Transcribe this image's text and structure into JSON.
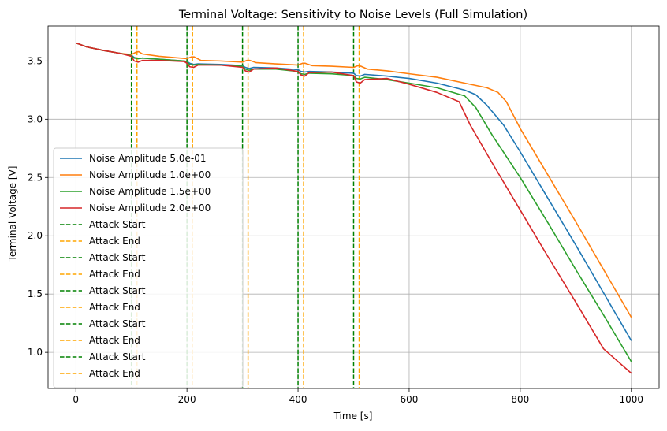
{
  "chart_data": {
    "type": "line",
    "title": "Terminal Voltage: Sensitivity to Noise Levels (Full Simulation)",
    "xlabel": "Time [s]",
    "ylabel": "Terminal Voltage [V]",
    "xlim": [
      -50,
      1050
    ],
    "ylim": [
      0.69,
      3.8
    ],
    "x_ticks": [
      0,
      200,
      400,
      600,
      800,
      1000
    ],
    "y_ticks": [
      1.0,
      1.5,
      2.0,
      2.5,
      3.0,
      3.5
    ],
    "x_tick_labels": [
      "0",
      "200",
      "400",
      "600",
      "800",
      "1000"
    ],
    "y_tick_labels": [
      "1.0",
      "1.5",
      "2.0",
      "2.5",
      "3.0",
      "3.5"
    ],
    "grid": true,
    "legend_position": "lower-left",
    "series": [
      {
        "name": "Noise Amplitude 5.0e-01",
        "color": "#1f77b4",
        "points": [
          [
            0,
            3.655
          ],
          [
            20,
            3.62
          ],
          [
            50,
            3.59
          ],
          [
            80,
            3.565
          ],
          [
            100,
            3.55
          ],
          [
            105,
            3.53
          ],
          [
            112,
            3.52
          ],
          [
            120,
            3.525
          ],
          [
            150,
            3.515
          ],
          [
            195,
            3.5
          ],
          [
            200,
            3.495
          ],
          [
            205,
            3.48
          ],
          [
            212,
            3.47
          ],
          [
            220,
            3.475
          ],
          [
            260,
            3.47
          ],
          [
            300,
            3.46
          ],
          [
            305,
            3.445
          ],
          [
            312,
            3.435
          ],
          [
            320,
            3.445
          ],
          [
            360,
            3.44
          ],
          [
            400,
            3.425
          ],
          [
            405,
            3.41
          ],
          [
            412,
            3.405
          ],
          [
            420,
            3.41
          ],
          [
            460,
            3.405
          ],
          [
            500,
            3.395
          ],
          [
            505,
            3.375
          ],
          [
            512,
            3.37
          ],
          [
            520,
            3.385
          ],
          [
            560,
            3.37
          ],
          [
            600,
            3.35
          ],
          [
            650,
            3.31
          ],
          [
            700,
            3.25
          ],
          [
            720,
            3.21
          ],
          [
            740,
            3.12
          ],
          [
            770,
            2.95
          ],
          [
            800,
            2.72
          ],
          [
            850,
            2.32
          ],
          [
            900,
            1.92
          ],
          [
            950,
            1.51
          ],
          [
            1000,
            1.1
          ]
        ]
      },
      {
        "name": "Noise Amplitude 1.0e+00",
        "color": "#ff7f0e",
        "points": [
          [
            0,
            3.655
          ],
          [
            20,
            3.62
          ],
          [
            50,
            3.59
          ],
          [
            80,
            3.565
          ],
          [
            100,
            3.555
          ],
          [
            108,
            3.575
          ],
          [
            113,
            3.58
          ],
          [
            120,
            3.56
          ],
          [
            150,
            3.54
          ],
          [
            200,
            3.52
          ],
          [
            208,
            3.535
          ],
          [
            213,
            3.535
          ],
          [
            225,
            3.505
          ],
          [
            260,
            3.5
          ],
          [
            300,
            3.49
          ],
          [
            308,
            3.505
          ],
          [
            313,
            3.505
          ],
          [
            325,
            3.485
          ],
          [
            360,
            3.475
          ],
          [
            400,
            3.465
          ],
          [
            408,
            3.48
          ],
          [
            413,
            3.48
          ],
          [
            425,
            3.46
          ],
          [
            460,
            3.455
          ],
          [
            500,
            3.445
          ],
          [
            508,
            3.46
          ],
          [
            513,
            3.455
          ],
          [
            525,
            3.43
          ],
          [
            560,
            3.415
          ],
          [
            600,
            3.39
          ],
          [
            650,
            3.36
          ],
          [
            700,
            3.31
          ],
          [
            740,
            3.27
          ],
          [
            760,
            3.23
          ],
          [
            775,
            3.15
          ],
          [
            800,
            2.92
          ],
          [
            850,
            2.52
          ],
          [
            900,
            2.12
          ],
          [
            950,
            1.71
          ],
          [
            1000,
            1.3
          ]
        ]
      },
      {
        "name": "Noise Amplitude 1.5e+00",
        "color": "#2ca02c",
        "points": [
          [
            0,
            3.655
          ],
          [
            20,
            3.62
          ],
          [
            50,
            3.59
          ],
          [
            80,
            3.565
          ],
          [
            100,
            3.545
          ],
          [
            105,
            3.525
          ],
          [
            112,
            3.52
          ],
          [
            120,
            3.525
          ],
          [
            150,
            3.515
          ],
          [
            195,
            3.5
          ],
          [
            200,
            3.49
          ],
          [
            205,
            3.47
          ],
          [
            212,
            3.465
          ],
          [
            220,
            3.47
          ],
          [
            260,
            3.465
          ],
          [
            300,
            3.455
          ],
          [
            305,
            3.43
          ],
          [
            312,
            3.42
          ],
          [
            320,
            3.43
          ],
          [
            360,
            3.43
          ],
          [
            400,
            3.41
          ],
          [
            405,
            3.39
          ],
          [
            412,
            3.385
          ],
          [
            420,
            3.395
          ],
          [
            460,
            3.39
          ],
          [
            500,
            3.375
          ],
          [
            505,
            3.35
          ],
          [
            512,
            3.345
          ],
          [
            520,
            3.36
          ],
          [
            560,
            3.34
          ],
          [
            600,
            3.31
          ],
          [
            650,
            3.27
          ],
          [
            700,
            3.2
          ],
          [
            720,
            3.1
          ],
          [
            750,
            2.86
          ],
          [
            800,
            2.5
          ],
          [
            850,
            2.11
          ],
          [
            900,
            1.71
          ],
          [
            950,
            1.32
          ],
          [
            1000,
            0.92
          ]
        ]
      },
      {
        "name": "Noise Amplitude 2.0e+00",
        "color": "#d62728",
        "points": [
          [
            0,
            3.655
          ],
          [
            20,
            3.62
          ],
          [
            50,
            3.59
          ],
          [
            80,
            3.565
          ],
          [
            100,
            3.54
          ],
          [
            105,
            3.5
          ],
          [
            112,
            3.49
          ],
          [
            120,
            3.505
          ],
          [
            150,
            3.505
          ],
          [
            195,
            3.495
          ],
          [
            200,
            3.48
          ],
          [
            205,
            3.45
          ],
          [
            212,
            3.445
          ],
          [
            220,
            3.465
          ],
          [
            260,
            3.465
          ],
          [
            300,
            3.445
          ],
          [
            305,
            3.415
          ],
          [
            312,
            3.405
          ],
          [
            320,
            3.43
          ],
          [
            360,
            3.44
          ],
          [
            400,
            3.41
          ],
          [
            405,
            3.38
          ],
          [
            412,
            3.37
          ],
          [
            420,
            3.4
          ],
          [
            460,
            3.405
          ],
          [
            500,
            3.375
          ],
          [
            505,
            3.32
          ],
          [
            512,
            3.31
          ],
          [
            520,
            3.34
          ],
          [
            560,
            3.35
          ],
          [
            600,
            3.3
          ],
          [
            650,
            3.23
          ],
          [
            690,
            3.15
          ],
          [
            710,
            2.95
          ],
          [
            750,
            2.62
          ],
          [
            800,
            2.22
          ],
          [
            850,
            1.82
          ],
          [
            900,
            1.43
          ],
          [
            950,
            1.03
          ],
          [
            1000,
            0.82
          ]
        ]
      }
    ],
    "vlines": [
      {
        "name": "Attack Start",
        "x": 100,
        "color": "#008000"
      },
      {
        "name": "Attack End",
        "x": 110,
        "color": "#ffa500"
      },
      {
        "name": "Attack Start",
        "x": 200,
        "color": "#008000"
      },
      {
        "name": "Attack End",
        "x": 210,
        "color": "#ffa500"
      },
      {
        "name": "Attack Start",
        "x": 300,
        "color": "#008000"
      },
      {
        "name": "Attack End",
        "x": 310,
        "color": "#ffa500"
      },
      {
        "name": "Attack Start",
        "x": 400,
        "color": "#008000"
      },
      {
        "name": "Attack End",
        "x": 410,
        "color": "#ffa500"
      },
      {
        "name": "Attack Start",
        "x": 500,
        "color": "#008000"
      },
      {
        "name": "Attack End",
        "x": 510,
        "color": "#ffa500"
      }
    ]
  }
}
